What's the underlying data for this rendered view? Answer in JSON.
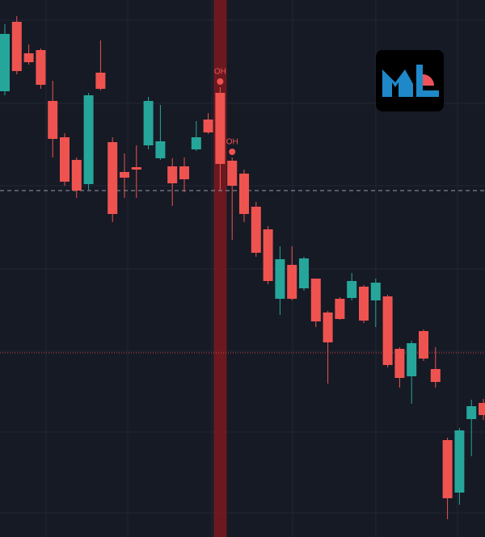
{
  "chart_data": {
    "type": "candlestick",
    "ylim": [
      0,
      665
    ],
    "grid": true,
    "up_color": "#26a69a",
    "down_color": "#ef5350",
    "open": [
      552,
      638,
      599,
      603,
      540,
      495,
      467,
      437,
      575,
      489,
      452,
      458,
      485,
      469,
      459,
      459,
      480,
      517,
      550,
      466,
      450,
      409,
      381,
      295,
      337,
      308,
      320,
      278,
      295,
      296,
      310,
      293,
      298,
      233,
      199,
      255,
      208,
      120,
      55,
      146,
      166
    ],
    "high": [
      635,
      645,
      610,
      605,
      565,
      500,
      470,
      550,
      615,
      495,
      475,
      485,
      545,
      535,
      469,
      470,
      515,
      525,
      557,
      470,
      455,
      415,
      385,
      360,
      360,
      347,
      320,
      280,
      297,
      327,
      312,
      320,
      300,
      235,
      243,
      257,
      235,
      123,
      135,
      170,
      171
    ],
    "low": [
      547,
      573,
      585,
      555,
      470,
      435,
      420,
      430,
      553,
      390,
      420,
      420,
      480,
      467,
      410,
      427,
      478,
      499,
      430,
      368,
      390,
      347,
      313,
      275,
      293,
      305,
      260,
      190,
      269,
      293,
      265,
      260,
      210,
      185,
      165,
      218,
      185,
      22,
      40,
      100,
      145
    ],
    "close": [
      623,
      577,
      588,
      560,
      493,
      440,
      429,
      547,
      555,
      400,
      445,
      455,
      540,
      490,
      438,
      443,
      495,
      501,
      462,
      435,
      400,
      352,
      317,
      344,
      295,
      345,
      267,
      241,
      270,
      317,
      268,
      315,
      213,
      197,
      240,
      221,
      192,
      48,
      132,
      162,
      151
    ],
    "highlight_index": 18,
    "annotations": [
      {
        "text": "OH",
        "index": 18
      },
      {
        "text": "OH",
        "index": 19
      }
    ],
    "price_lines": [
      {
        "value": 429,
        "color": "#b8bcc8",
        "style": "dashed"
      },
      {
        "value": 228,
        "color": "#ef5350",
        "style": "dotted"
      }
    ]
  }
}
